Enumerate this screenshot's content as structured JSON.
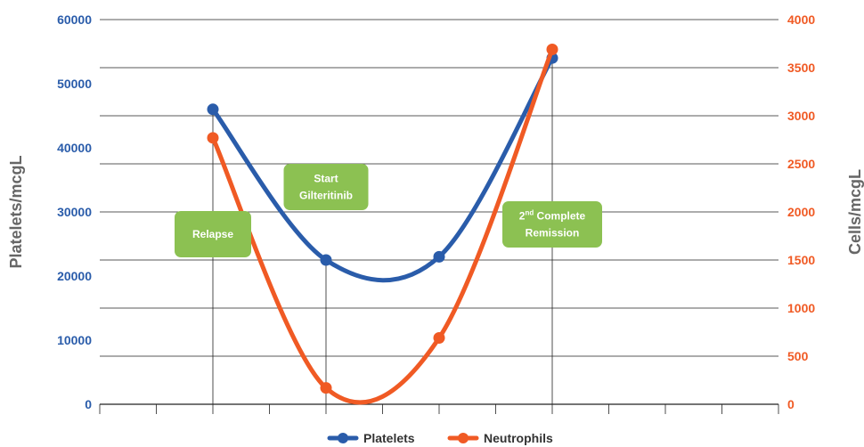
{
  "chart_data": {
    "type": "line",
    "x": [
      1,
      2,
      3,
      4,
      5
    ],
    "y_left": {
      "label": "Platelets/mcgL",
      "range": [
        0,
        60000
      ],
      "ticks": [
        "0",
        "10000",
        "20000",
        "30000",
        "40000",
        "50000",
        "60000"
      ]
    },
    "y_right": {
      "label": "Cells/mcgL",
      "range": [
        0,
        4000
      ],
      "ticks": [
        "0",
        "500",
        "1000",
        "1500",
        "2000",
        "2500",
        "3000",
        "3500",
        "4000"
      ]
    },
    "x_range": [
      0,
      6
    ],
    "grid": true,
    "legend_position": "bottom-center",
    "series": [
      {
        "name": "Platelets",
        "axis": "left",
        "color": "#2a5caa",
        "values": [
          46000,
          22500,
          23000,
          54000
        ],
        "x": [
          1,
          2,
          3,
          4
        ]
      },
      {
        "name": "Neutrophils",
        "axis": "right",
        "color": "#f05a24",
        "values": [
          2770,
          170,
          690,
          3690
        ],
        "x": [
          1,
          2,
          3,
          4
        ]
      }
    ],
    "annotations": [
      {
        "id": "relapse",
        "lines": [
          "Relapse"
        ],
        "x": 1
      },
      {
        "id": "start-gilteritinib",
        "lines": [
          "Start",
          "Gilteritinib"
        ],
        "x": 2
      },
      {
        "id": "second-remission",
        "lines": [
          "2nd Complete",
          "Remission"
        ],
        "x": 4
      }
    ],
    "annotation_color": "#8cc152"
  }
}
